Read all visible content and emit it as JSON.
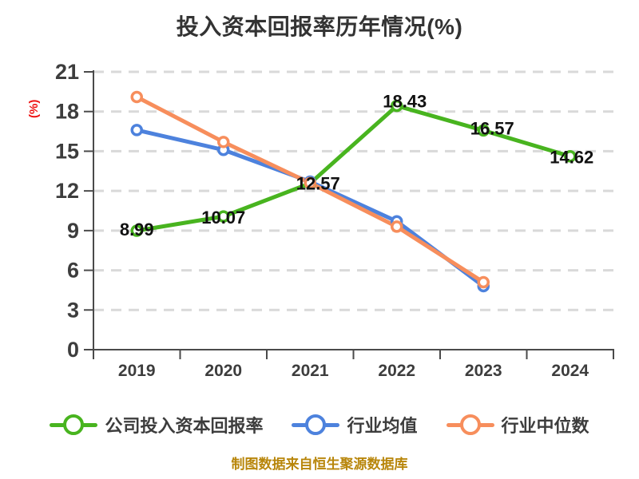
{
  "chart_data": {
    "type": "line",
    "title": "投入资本回报率历年情况(%)",
    "ylabel": "(%)",
    "footer": "制图数据来自恒生聚源数据库",
    "categories": [
      "2019",
      "2020",
      "2021",
      "2022",
      "2023",
      "2024"
    ],
    "ylim": [
      0,
      21
    ],
    "yticks": [
      0,
      3,
      6,
      9,
      12,
      15,
      18,
      21
    ],
    "grid": "horizontal-dashed",
    "legend_position": "bottom",
    "series": [
      {
        "name": "公司投入资本回报率",
        "color": "#48b41f",
        "values": [
          8.99,
          10.07,
          12.57,
          18.43,
          16.57,
          14.62
        ],
        "labels": [
          "8.99",
          "10.07",
          "12.57",
          "18.43",
          "16.57",
          "14.62"
        ]
      },
      {
        "name": "行业均值",
        "color": "#4d82dd",
        "values": [
          16.6,
          15.1,
          12.7,
          9.7,
          4.8,
          null
        ]
      },
      {
        "name": "行业中位数",
        "color": "#f78e5c",
        "values": [
          19.1,
          15.7,
          12.6,
          9.3,
          5.1,
          null
        ]
      }
    ],
    "colors": {
      "axis": "#4a4a4a",
      "grid": "#d9d9d9",
      "tick_label": "#3d3d3d",
      "title": "#333333",
      "ylabel": "#ee1111",
      "data_label": "#111111",
      "footer": "#b8860b",
      "background": "#ffffff"
    }
  }
}
